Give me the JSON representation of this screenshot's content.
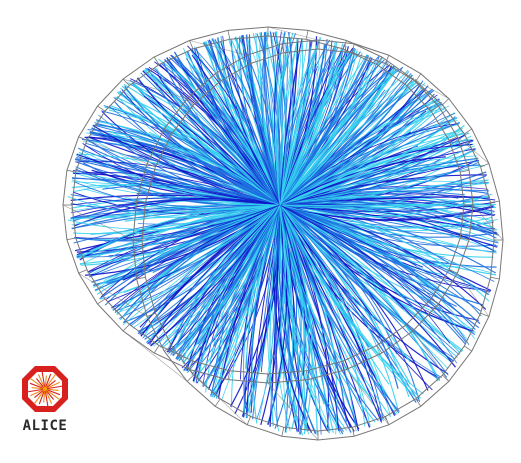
{
  "logo": {
    "text": "ALICE"
  },
  "colors": {
    "track_dark_blue": "#1010c8",
    "track_mid_blue": "#1e6fe0",
    "track_cyan": "#35d0ef",
    "detector_frame": "#777777",
    "logo_red": "#d8211f",
    "logo_orange": "#f08a1a"
  }
}
